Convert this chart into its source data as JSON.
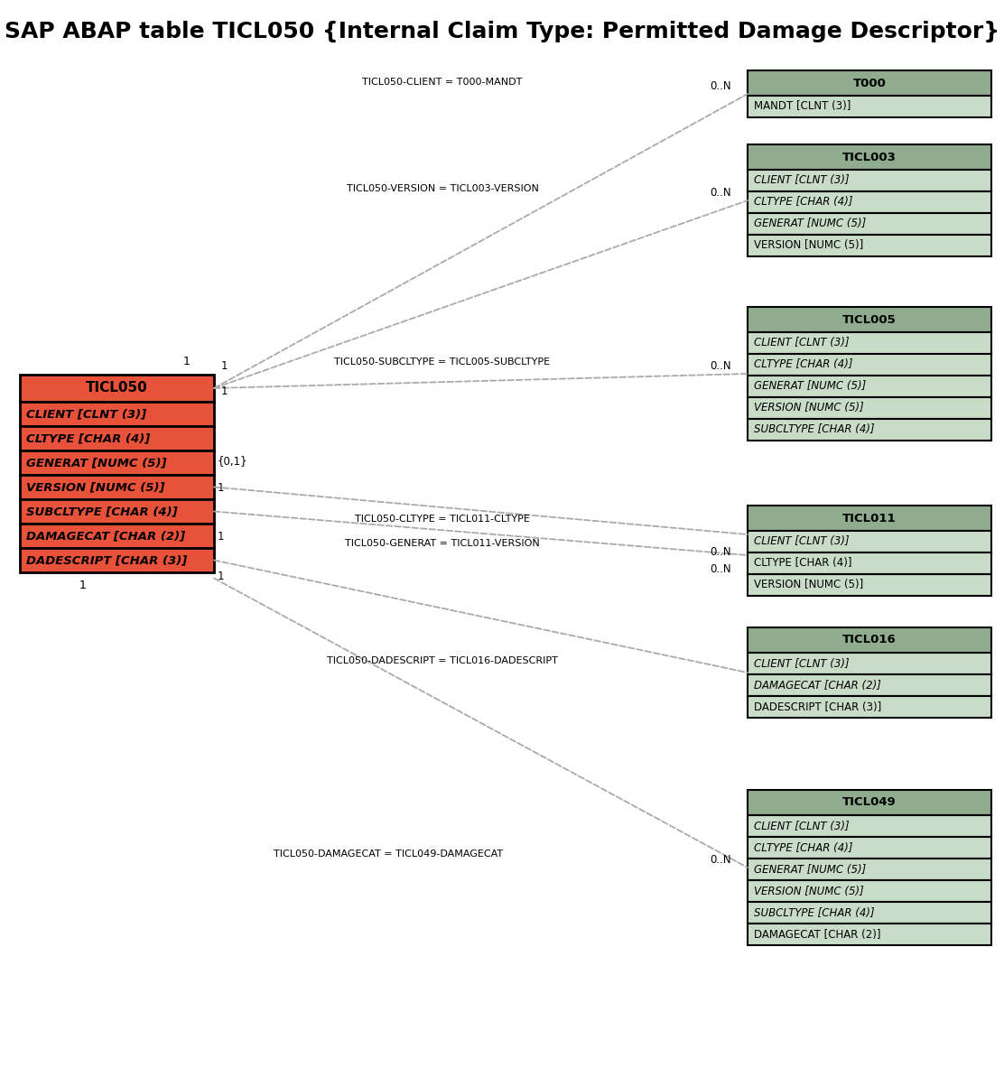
{
  "title": "SAP ABAP table TICL050 {Internal Claim Type: Permitted Damage Descriptor}",
  "bg_color": "#ffffff",
  "title_fontsize": 18,
  "main_table": {
    "name": "TICL050",
    "header_color": "#e8523a",
    "row_color": "#e8523a",
    "fields": [
      {
        "text": "CLIENT [CLNT (3)]",
        "italic": true,
        "underline": true
      },
      {
        "text": "CLTYPE [CHAR (4)]",
        "italic": true,
        "underline": true
      },
      {
        "text": "GENERAT [NUMC (5)]",
        "italic": true,
        "underline": true
      },
      {
        "text": "VERSION [NUMC (5)]",
        "italic": true,
        "underline": true
      },
      {
        "text": "SUBCLTYPE [CHAR (4)]",
        "italic": true,
        "underline": true
      },
      {
        "text": "DAMAGECAT [CHAR (2)]",
        "italic": true,
        "underline": true
      },
      {
        "text": "DADESCRIPT [CHAR (3)]",
        "italic": true,
        "underline": true
      }
    ]
  },
  "right_tables": [
    {
      "name": "T000",
      "header_color": "#8fac8f",
      "row_color": "#c8dcc8",
      "fields": [
        {
          "text": "MANDT [CLNT (3)]",
          "italic": false,
          "underline": true
        }
      ],
      "conn_label": "TICL050-CLIENT = T000-MANDT",
      "left_mult": "1",
      "right_mult": "0..N",
      "from_field": 0
    },
    {
      "name": "TICL003",
      "header_color": "#8fac8f",
      "row_color": "#c8dcc8",
      "fields": [
        {
          "text": "CLIENT [CLNT (3)]",
          "italic": true,
          "underline": true
        },
        {
          "text": "CLTYPE [CHAR (4)]",
          "italic": true,
          "underline": true
        },
        {
          "text": "GENERAT [NUMC (5)]",
          "italic": true,
          "underline": true
        },
        {
          "text": "VERSION [NUMC (5)]",
          "italic": false,
          "underline": false
        }
      ],
      "conn_label": "TICL050-VERSION = TICL003-VERSION",
      "left_mult": "1",
      "right_mult": "0..N",
      "from_field": 0
    },
    {
      "name": "TICL005",
      "header_color": "#8fac8f",
      "row_color": "#c8dcc8",
      "fields": [
        {
          "text": "CLIENT [CLNT (3)]",
          "italic": true,
          "underline": true
        },
        {
          "text": "CLTYPE [CHAR (4)]",
          "italic": true,
          "underline": true
        },
        {
          "text": "GENERAT [NUMC (5)]",
          "italic": true,
          "underline": true
        },
        {
          "text": "VERSION [NUMC (5)]",
          "italic": true,
          "underline": true
        },
        {
          "text": "SUBCLTYPE [CHAR (4)]",
          "italic": true,
          "underline": true
        }
      ],
      "conn_label": "TICL050-SUBCLTYPE = TICL005-SUBCLTYPE",
      "left_mult": "1",
      "right_mult": "0..N",
      "from_field": 0
    },
    {
      "name": "TICL011",
      "header_color": "#8fac8f",
      "row_color": "#c8dcc8",
      "fields": [
        {
          "text": "CLIENT [CLNT (3)]",
          "italic": true,
          "underline": true
        },
        {
          "text": "CLTYPE [CHAR (4)]",
          "italic": false,
          "underline": true
        },
        {
          "text": "VERSION [NUMC (5)]",
          "italic": false,
          "underline": false
        }
      ],
      "conn_label1": "TICL050-CLTYPE = TICL011-CLTYPE",
      "conn_label2": "TICL050-GENERAT = TICL011-VERSION",
      "left_mult1": "{0,1}",
      "left_mult2": "1",
      "right_mult1": "",
      "right_mult2": "0..N",
      "from_field": 3,
      "dual": true
    },
    {
      "name": "TICL016",
      "header_color": "#8fac8f",
      "row_color": "#c8dcc8",
      "fields": [
        {
          "text": "CLIENT [CLNT (3)]",
          "italic": true,
          "underline": true
        },
        {
          "text": "DAMAGECAT [CHAR (2)]",
          "italic": true,
          "underline": true
        },
        {
          "text": "DADESCRIPT [CHAR (3)]",
          "italic": false,
          "underline": false
        }
      ],
      "conn_label": "TICL050-DADESCRIPT = TICL016-DADESCRIPT",
      "left_mult": "1",
      "right_mult": "",
      "from_field": 6
    },
    {
      "name": "TICL049",
      "header_color": "#8fac8f",
      "row_color": "#c8dcc8",
      "fields": [
        {
          "text": "CLIENT [CLNT (3)]",
          "italic": true,
          "underline": true
        },
        {
          "text": "CLTYPE [CHAR (4)]",
          "italic": true,
          "underline": true
        },
        {
          "text": "GENERAT [NUMC (5)]",
          "italic": true,
          "underline": true
        },
        {
          "text": "VERSION [NUMC (5)]",
          "italic": true,
          "underline": true
        },
        {
          "text": "SUBCLTYPE [CHAR (4)]",
          "italic": true,
          "underline": true
        },
        {
          "text": "DAMAGECAT [CHAR (2)]",
          "italic": false,
          "underline": false
        }
      ],
      "conn_label": "TICL050-DAMAGECAT = TICL049-DAMAGECAT",
      "left_mult": "1",
      "right_mult": "0..N",
      "from_field": 6
    }
  ],
  "connections": [
    {
      "from_field": 0,
      "to_table": "T000",
      "label": "TICL050-CLIENT = T000-MANDT",
      "lmult": "1",
      "rmult": "0..N"
    },
    {
      "from_field": 0,
      "to_table": "TICL003",
      "label": "TICL050-VERSION = TICL003-VERSION",
      "lmult": "1",
      "rmult": "0..N"
    },
    {
      "from_field": 0,
      "to_table": "TICL005",
      "label": "TICL050-SUBCLTYPE = TICL005-SUBCLTYPE",
      "lmult": "1",
      "rmult": "0..N"
    },
    {
      "from_field": 3,
      "to_table": "TICL011",
      "label": "TICL050-CLTYPE = TICL011-CLTYPE",
      "lmult": "{0,1}",
      "rmult": ""
    },
    {
      "from_field": 4,
      "to_table": "TICL011",
      "label": "TICL050-GENERAT = TICL011-VERSION",
      "lmult": "1",
      "rmult": "0..N"
    },
    {
      "from_field": 6,
      "to_table": "TICL016",
      "label": "TICL050-DADESCRIPT = TICL016-DADESCRIPT",
      "lmult": "1",
      "rmult": ""
    },
    {
      "from_field": 6,
      "to_table": "TICL049",
      "label": "TICL050-DAMAGECAT = TICL049-DAMAGECAT",
      "lmult": "1",
      "rmult": "0..N"
    }
  ]
}
